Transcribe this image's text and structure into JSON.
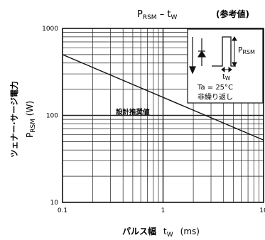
{
  "title": {
    "main": "P",
    "main_sub": "RSM",
    "dash": " – ",
    "var": "t",
    "var_sub": "W",
    "note": "(参考値)"
  },
  "ylabel": {
    "jp": "ツェナー·サージ電力",
    "symbol": "P",
    "symbol_sub": "RSM",
    "unit": "(W)"
  },
  "xlabel": {
    "jp": "パルス幅",
    "symbol": "t",
    "symbol_sub": "W",
    "unit": "(ms)"
  },
  "inset": {
    "p_label": "P",
    "p_sub": "RSM",
    "tw_label": "t",
    "tw_sub": "W",
    "condition": "Ta = 25°C",
    "note": "非繰り返し"
  },
  "chart_data": {
    "type": "line",
    "x_scale": "log",
    "y_scale": "log",
    "xlim": [
      0.1,
      10
    ],
    "ylim": [
      10,
      1000
    ],
    "x_ticks": [
      "0.1",
      "1",
      "10"
    ],
    "y_ticks": [
      "10",
      "100",
      "1000"
    ],
    "grid": true,
    "series": [
      {
        "name": "設計推奨値",
        "x": [
          0.1,
          10
        ],
        "y": [
          500,
          52
        ]
      }
    ],
    "annotation": "設計推奨値",
    "colors": {
      "line": "#111111",
      "grid": "#222222",
      "background": "#ffffff"
    }
  }
}
